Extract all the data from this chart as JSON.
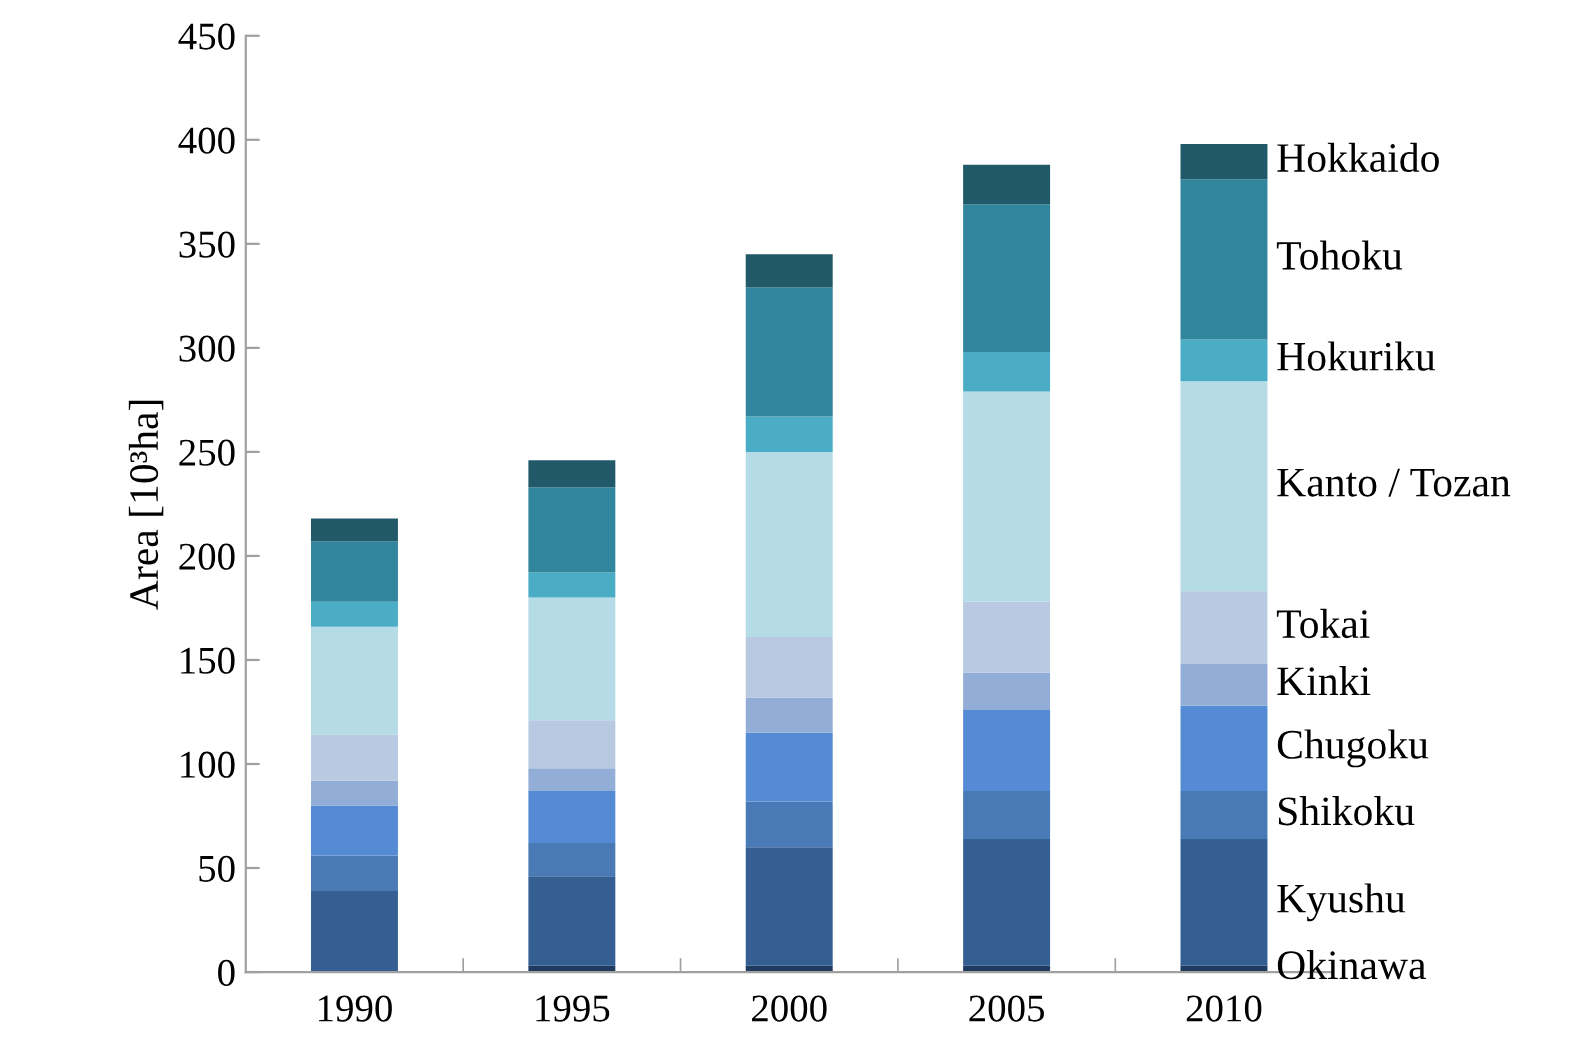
{
  "chart_data": {
    "type": "bar",
    "stacked": true,
    "ylabel": "Area [10³ha]",
    "categories": [
      "1990",
      "1995",
      "2000",
      "2005",
      "2010"
    ],
    "series": [
      {
        "name": "Okinawa",
        "color": "#1f3a5f",
        "values": [
          null,
          3,
          3,
          3,
          3
        ]
      },
      {
        "name": "Kyushu",
        "color": "#355f93",
        "values": [
          39,
          43,
          57,
          61,
          61
        ]
      },
      {
        "name": "Shikoku",
        "color": "#4a7ab5",
        "values": [
          17,
          16,
          22,
          23,
          23
        ]
      },
      {
        "name": "Chugoku",
        "color": "#558bd4",
        "values": [
          24,
          25,
          33,
          39,
          41
        ]
      },
      {
        "name": "Kinki",
        "color": "#93aed6",
        "values": [
          12,
          11,
          17,
          18,
          20
        ]
      },
      {
        "name": "Tokai",
        "color": "#b9c9e2",
        "values": [
          22,
          23,
          29,
          34,
          35
        ]
      },
      {
        "name": "Kanto / Tozan",
        "color": "#b4dbe6",
        "values": [
          52,
          59,
          89,
          101,
          101
        ]
      },
      {
        "name": "Hokuriku",
        "color": "#4bacc6",
        "values": [
          12,
          12,
          17,
          19,
          20
        ]
      },
      {
        "name": "Tohoku",
        "color": "#31859c",
        "values": [
          29,
          41,
          62,
          71,
          77
        ]
      },
      {
        "name": "Hokkaido",
        "color": "#215968",
        "values": [
          11,
          13,
          16,
          19,
          17
        ]
      }
    ],
    "ylim": [
      0,
      450
    ],
    "yticks": [
      0,
      50,
      100,
      150,
      200,
      250,
      300,
      350,
      400,
      450
    ],
    "grid": false
  }
}
